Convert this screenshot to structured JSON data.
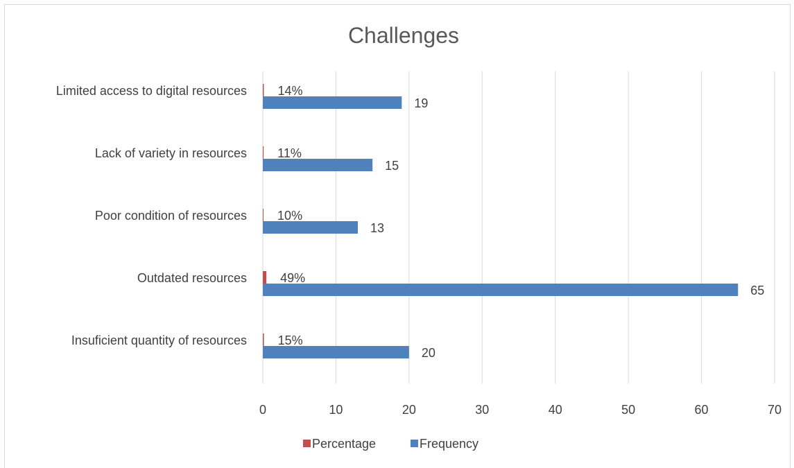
{
  "chart_data": {
    "type": "bar",
    "orientation": "horizontal",
    "title": "Challenges",
    "categories": [
      "Insuficient quantity of resources",
      "Outdated resources",
      "Poor condition of resources",
      "Lack of variety in resources",
      "Limited access to digital resources"
    ],
    "series": [
      {
        "name": "Frequency",
        "color": "#4f81bd",
        "values": [
          20,
          65,
          13,
          15,
          19
        ],
        "labels": [
          "20",
          "65",
          "13",
          "15",
          "19"
        ]
      },
      {
        "name": "Percentage",
        "color": "#c0504d",
        "values": [
          0.15,
          0.49,
          0.1,
          0.11,
          0.14
        ],
        "labels": [
          "15%",
          "49%",
          "10%",
          "11%",
          "14%"
        ]
      }
    ],
    "xlim": [
      0,
      70
    ],
    "xticks": [
      "0",
      "10",
      "20",
      "30",
      "40",
      "50",
      "60",
      "70"
    ],
    "grid": true,
    "legend": "bottom"
  }
}
